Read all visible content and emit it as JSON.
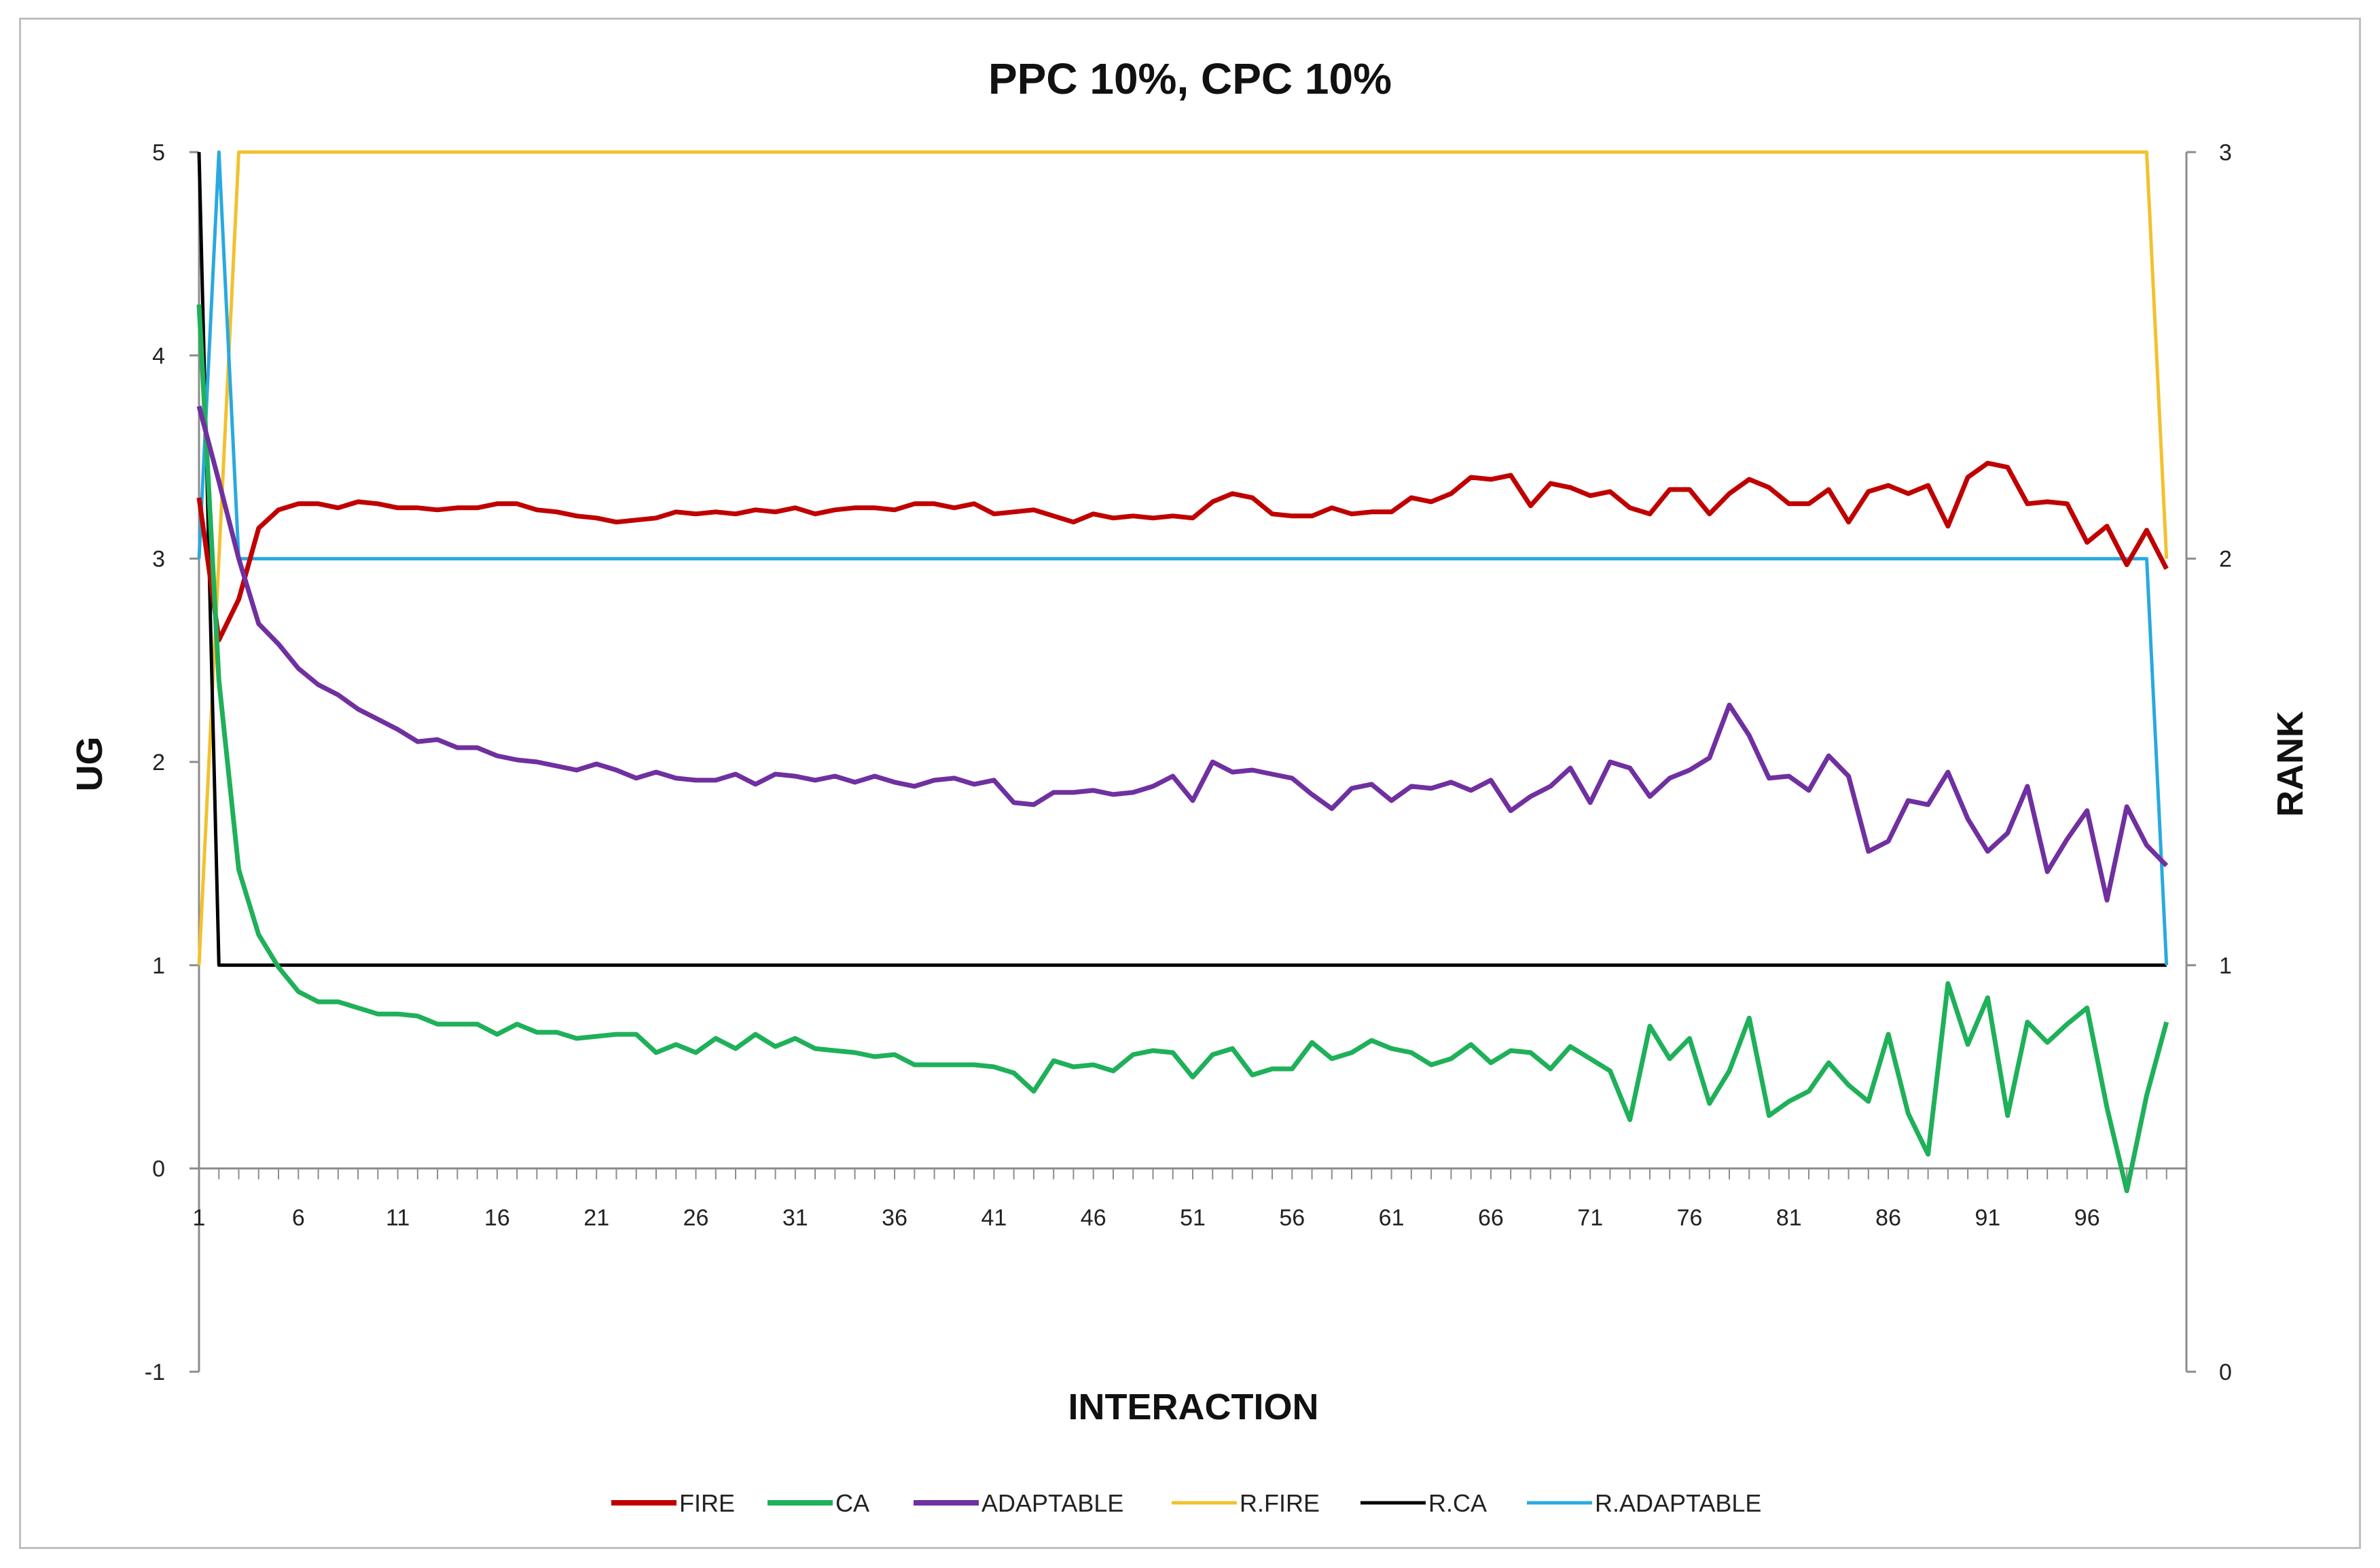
{
  "chart_data": {
    "type": "line",
    "title": "PPC 10%, CPC 10%",
    "xlabel": "INTERACTION",
    "ylabel": "UG",
    "y2label": "RANK",
    "xlim": [
      1,
      101
    ],
    "ylim": [
      -1,
      5
    ],
    "y2lim": [
      0,
      3
    ],
    "x_ticks": [
      "1",
      "6",
      "11",
      "16",
      "21",
      "26",
      "31",
      "36",
      "41",
      "46",
      "51",
      "56",
      "61",
      "66",
      "71",
      "76",
      "81",
      "86",
      "91",
      "96"
    ],
    "y_ticks": [
      "-1",
      "0",
      "1",
      "2",
      "3",
      "4",
      "5"
    ],
    "y2_ticks": [
      "0",
      "1",
      "2",
      "3"
    ],
    "legend_position": "bottom",
    "series": [
      {
        "name": "FIRE",
        "axis": "left",
        "color": "#c00000",
        "values": [
          3.3,
          2.6,
          2.8,
          3.15,
          3.24,
          3.27,
          3.27,
          3.25,
          3.28,
          3.27,
          3.25,
          3.25,
          3.24,
          3.25,
          3.25,
          3.27,
          3.27,
          3.24,
          3.23,
          3.21,
          3.2,
          3.18,
          3.19,
          3.2,
          3.23,
          3.22,
          3.23,
          3.22,
          3.24,
          3.23,
          3.25,
          3.22,
          3.24,
          3.25,
          3.25,
          3.24,
          3.27,
          3.27,
          3.25,
          3.27,
          3.22,
          3.23,
          3.24,
          3.21,
          3.18,
          3.22,
          3.2,
          3.21,
          3.2,
          3.21,
          3.2,
          3.28,
          3.32,
          3.3,
          3.22,
          3.21,
          3.21,
          3.25,
          3.22,
          3.23,
          3.23,
          3.3,
          3.28,
          3.32,
          3.4,
          3.39,
          3.41,
          3.26,
          3.37,
          3.35,
          3.31,
          3.33,
          3.25,
          3.22,
          3.34,
          3.34,
          3.22,
          3.32,
          3.39,
          3.35,
          3.27,
          3.27,
          3.34,
          3.18,
          3.33,
          3.36,
          3.32,
          3.36,
          3.16,
          3.4,
          3.47,
          3.45,
          3.27,
          3.28,
          3.27,
          3.08,
          3.16,
          2.97,
          3.14,
          2.95
        ]
      },
      {
        "name": "CA",
        "axis": "left",
        "color": "#1fb05a",
        "values": [
          4.25,
          2.4,
          1.47,
          1.15,
          0.99,
          0.87,
          0.82,
          0.82,
          0.79,
          0.76,
          0.76,
          0.75,
          0.71,
          0.71,
          0.71,
          0.66,
          0.71,
          0.67,
          0.67,
          0.64,
          0.65,
          0.66,
          0.66,
          0.57,
          0.61,
          0.57,
          0.64,
          0.59,
          0.66,
          0.6,
          0.64,
          0.59,
          0.58,
          0.57,
          0.55,
          0.56,
          0.51,
          0.51,
          0.51,
          0.51,
          0.5,
          0.47,
          0.38,
          0.53,
          0.5,
          0.51,
          0.48,
          0.56,
          0.58,
          0.57,
          0.45,
          0.56,
          0.59,
          0.46,
          0.49,
          0.49,
          0.62,
          0.54,
          0.57,
          0.63,
          0.59,
          0.57,
          0.51,
          0.54,
          0.61,
          0.52,
          0.58,
          0.57,
          0.49,
          0.6,
          0.54,
          0.48,
          0.24,
          0.7,
          0.54,
          0.64,
          0.32,
          0.48,
          0.74,
          0.26,
          0.33,
          0.38,
          0.52,
          0.41,
          0.33,
          0.66,
          0.27,
          0.07,
          0.91,
          0.61,
          0.84,
          0.26,
          0.72,
          0.62,
          0.71,
          0.79,
          0.3,
          -0.11,
          0.36,
          0.72
        ]
      },
      {
        "name": "ADAPTABLE",
        "axis": "left",
        "color": "#7030a0",
        "values": [
          3.75,
          3.38,
          3.0,
          2.68,
          2.58,
          2.46,
          2.38,
          2.33,
          2.26,
          2.21,
          2.16,
          2.1,
          2.11,
          2.07,
          2.07,
          2.03,
          2.01,
          2.0,
          1.98,
          1.96,
          1.99,
          1.96,
          1.92,
          1.95,
          1.92,
          1.91,
          1.91,
          1.94,
          1.89,
          1.94,
          1.93,
          1.91,
          1.93,
          1.9,
          1.93,
          1.9,
          1.88,
          1.91,
          1.92,
          1.89,
          1.91,
          1.8,
          1.79,
          1.85,
          1.85,
          1.86,
          1.84,
          1.85,
          1.88,
          1.93,
          1.81,
          2.0,
          1.95,
          1.96,
          1.94,
          1.92,
          1.84,
          1.77,
          1.87,
          1.89,
          1.81,
          1.88,
          1.87,
          1.9,
          1.86,
          1.91,
          1.76,
          1.83,
          1.88,
          1.97,
          1.8,
          2.0,
          1.97,
          1.83,
          1.92,
          1.96,
          2.02,
          2.28,
          2.13,
          1.92,
          1.93,
          1.86,
          2.03,
          1.93,
          1.56,
          1.61,
          1.81,
          1.79,
          1.95,
          1.72,
          1.56,
          1.65,
          1.88,
          1.46,
          1.62,
          1.76,
          1.32,
          1.78,
          1.59,
          1.49
        ]
      },
      {
        "name": "R.FIRE",
        "axis": "right",
        "color": "#f2c12e",
        "values": [
          1,
          2,
          3,
          3,
          3,
          3,
          3,
          3,
          3,
          3,
          3,
          3,
          3,
          3,
          3,
          3,
          3,
          3,
          3,
          3,
          3,
          3,
          3,
          3,
          3,
          3,
          3,
          3,
          3,
          3,
          3,
          3,
          3,
          3,
          3,
          3,
          3,
          3,
          3,
          3,
          3,
          3,
          3,
          3,
          3,
          3,
          3,
          3,
          3,
          3,
          3,
          3,
          3,
          3,
          3,
          3,
          3,
          3,
          3,
          3,
          3,
          3,
          3,
          3,
          3,
          3,
          3,
          3,
          3,
          3,
          3,
          3,
          3,
          3,
          3,
          3,
          3,
          3,
          3,
          3,
          3,
          3,
          3,
          3,
          3,
          3,
          3,
          3,
          3,
          3,
          3,
          3,
          3,
          3,
          3,
          3,
          3,
          3,
          3,
          2
        ]
      },
      {
        "name": "R.CA",
        "axis": "right",
        "color": "#000000",
        "values": [
          3,
          1,
          1,
          1,
          1,
          1,
          1,
          1,
          1,
          1,
          1,
          1,
          1,
          1,
          1,
          1,
          1,
          1,
          1,
          1,
          1,
          1,
          1,
          1,
          1,
          1,
          1,
          1,
          1,
          1,
          1,
          1,
          1,
          1,
          1,
          1,
          1,
          1,
          1,
          1,
          1,
          1,
          1,
          1,
          1,
          1,
          1,
          1,
          1,
          1,
          1,
          1,
          1,
          1,
          1,
          1,
          1,
          1,
          1,
          1,
          1,
          1,
          1,
          1,
          1,
          1,
          1,
          1,
          1,
          1,
          1,
          1,
          1,
          1,
          1,
          1,
          1,
          1,
          1,
          1,
          1,
          1,
          1,
          1,
          1,
          1,
          1,
          1,
          1,
          1,
          1,
          1,
          1,
          1,
          1,
          1,
          1,
          1,
          1,
          1
        ]
      },
      {
        "name": "R.ADAPTABLE",
        "axis": "right",
        "color": "#29a9e0",
        "values": [
          2,
          3,
          2,
          2,
          2,
          2,
          2,
          2,
          2,
          2,
          2,
          2,
          2,
          2,
          2,
          2,
          2,
          2,
          2,
          2,
          2,
          2,
          2,
          2,
          2,
          2,
          2,
          2,
          2,
          2,
          2,
          2,
          2,
          2,
          2,
          2,
          2,
          2,
          2,
          2,
          2,
          2,
          2,
          2,
          2,
          2,
          2,
          2,
          2,
          2,
          2,
          2,
          2,
          2,
          2,
          2,
          2,
          2,
          2,
          2,
          2,
          2,
          2,
          2,
          2,
          2,
          2,
          2,
          2,
          2,
          2,
          2,
          2,
          2,
          2,
          2,
          2,
          2,
          2,
          2,
          2,
          2,
          2,
          2,
          2,
          2,
          2,
          2,
          2,
          2,
          2,
          2,
          2,
          2,
          2,
          2,
          2,
          2,
          2,
          1
        ]
      }
    ]
  }
}
